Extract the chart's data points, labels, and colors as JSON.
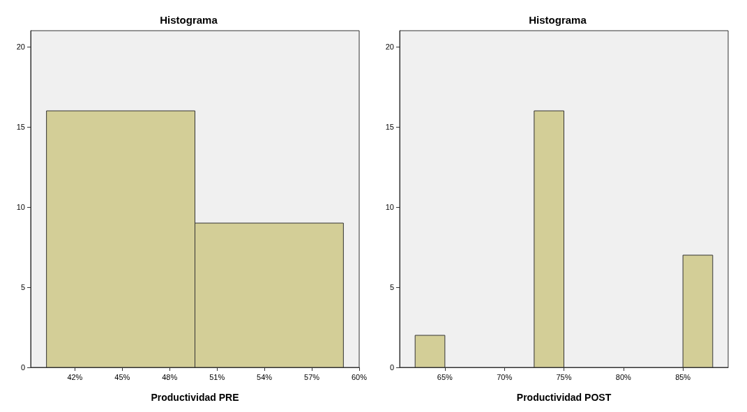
{
  "chart_data": [
    {
      "type": "histogram",
      "title": "Histograma",
      "xlabel": "Productividad PRE",
      "bins": [
        40.2,
        49.6,
        59.0
      ],
      "values": [
        16,
        9
      ],
      "color": "#d3ce97",
      "xlim": [
        39.2,
        60
      ],
      "xticks": [
        {
          "value": 42,
          "label": "42%"
        },
        {
          "value": 45,
          "label": "45%"
        },
        {
          "value": 48,
          "label": "48%"
        },
        {
          "value": 51,
          "label": "51%"
        },
        {
          "value": 54,
          "label": "54%"
        },
        {
          "value": 57,
          "label": "57%"
        },
        {
          "value": 60,
          "label": "60%"
        }
      ],
      "ylim": [
        0,
        21
      ],
      "yticks": [
        0,
        5,
        10,
        15,
        20
      ],
      "grid": false
    },
    {
      "type": "histogram",
      "title": "Histograma",
      "xlabel": "Productividad POST",
      "bins": [
        62.5,
        65,
        67.5,
        70,
        72.5,
        75,
        77.5,
        80,
        82.5,
        85,
        87.5
      ],
      "values": [
        2,
        0,
        0,
        0,
        16,
        0,
        0,
        0,
        0,
        7
      ],
      "color": "#d3ce97",
      "xlim": [
        61.2,
        88.8
      ],
      "xticks": [
        {
          "value": 65,
          "label": "65%"
        },
        {
          "value": 70,
          "label": "70%"
        },
        {
          "value": 75,
          "label": "75%"
        },
        {
          "value": 80,
          "label": "80%"
        },
        {
          "value": 85,
          "label": "85%"
        }
      ],
      "ylim": [
        0,
        21
      ],
      "yticks": [
        0,
        5,
        10,
        15,
        20
      ],
      "grid": false
    }
  ]
}
